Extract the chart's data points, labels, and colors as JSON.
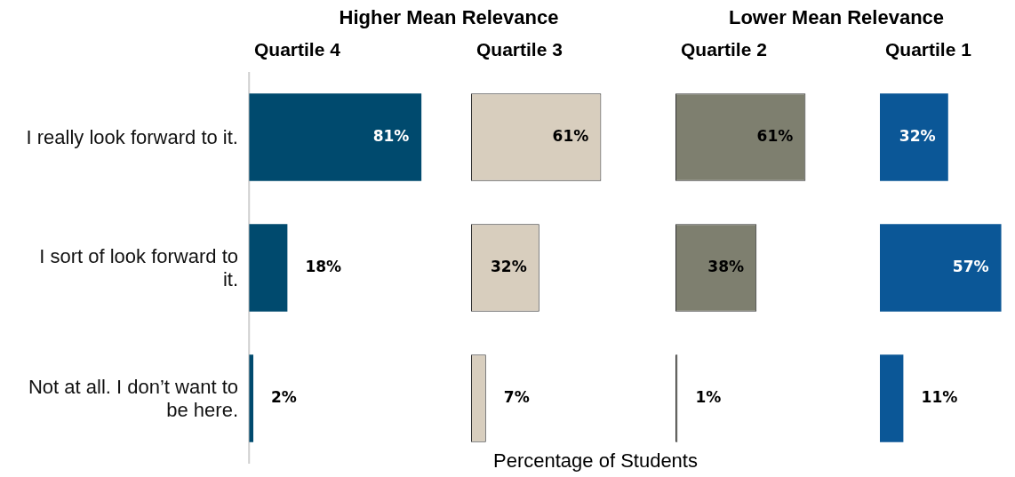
{
  "chart_data": [
    {
      "type": "bar",
      "orientation": "horizontal",
      "title": "Quartile 4",
      "annotations": [
        "Higher Mean Relevance"
      ],
      "tick_labels": "y",
      "categories": [
        "I really look forward to it.",
        "I sort of look forward to it.",
        "Not at all. I don’t want to be here."
      ],
      "series": [
        {
          "color": "#004a6e",
          "values": [
            81,
            18,
            2
          ],
          "value_labels": [
            "81%",
            "18%",
            "2%"
          ]
        }
      ]
    },
    {
      "type": "bar",
      "orientation": "horizontal",
      "title": "Quartile 3",
      "xlabel": "Percentage of Students",
      "tick_labels": false,
      "categories": [
        null,
        null,
        null
      ],
      "series": [
        {
          "color": "#d8cebe",
          "values": [
            61,
            32,
            7
          ],
          "value_labels": [
            "61%",
            "32%",
            "7%"
          ]
        }
      ]
    },
    {
      "type": "bar",
      "orientation": "horizontal",
      "title": "Quartile 2",
      "annotations": [
        "Lower Mean Relevance"
      ],
      "tick_labels": false,
      "categories": [
        null,
        null,
        null
      ],
      "series": [
        {
          "color": "#7e7f6f",
          "values": [
            61,
            38,
            1
          ],
          "value_labels": [
            "61%",
            "38%",
            "1%"
          ]
        }
      ]
    },
    {
      "type": "bar",
      "orientation": "horizontal",
      "title": "Quartile 1",
      "tick_labels": false,
      "categories": [
        null,
        null,
        null
      ],
      "series": [
        {
          "color": "#0b5797",
          "values": [
            32,
            57,
            11
          ],
          "value_labels": [
            "32%",
            "57%",
            "11%"
          ]
        }
      ]
    }
  ]
}
